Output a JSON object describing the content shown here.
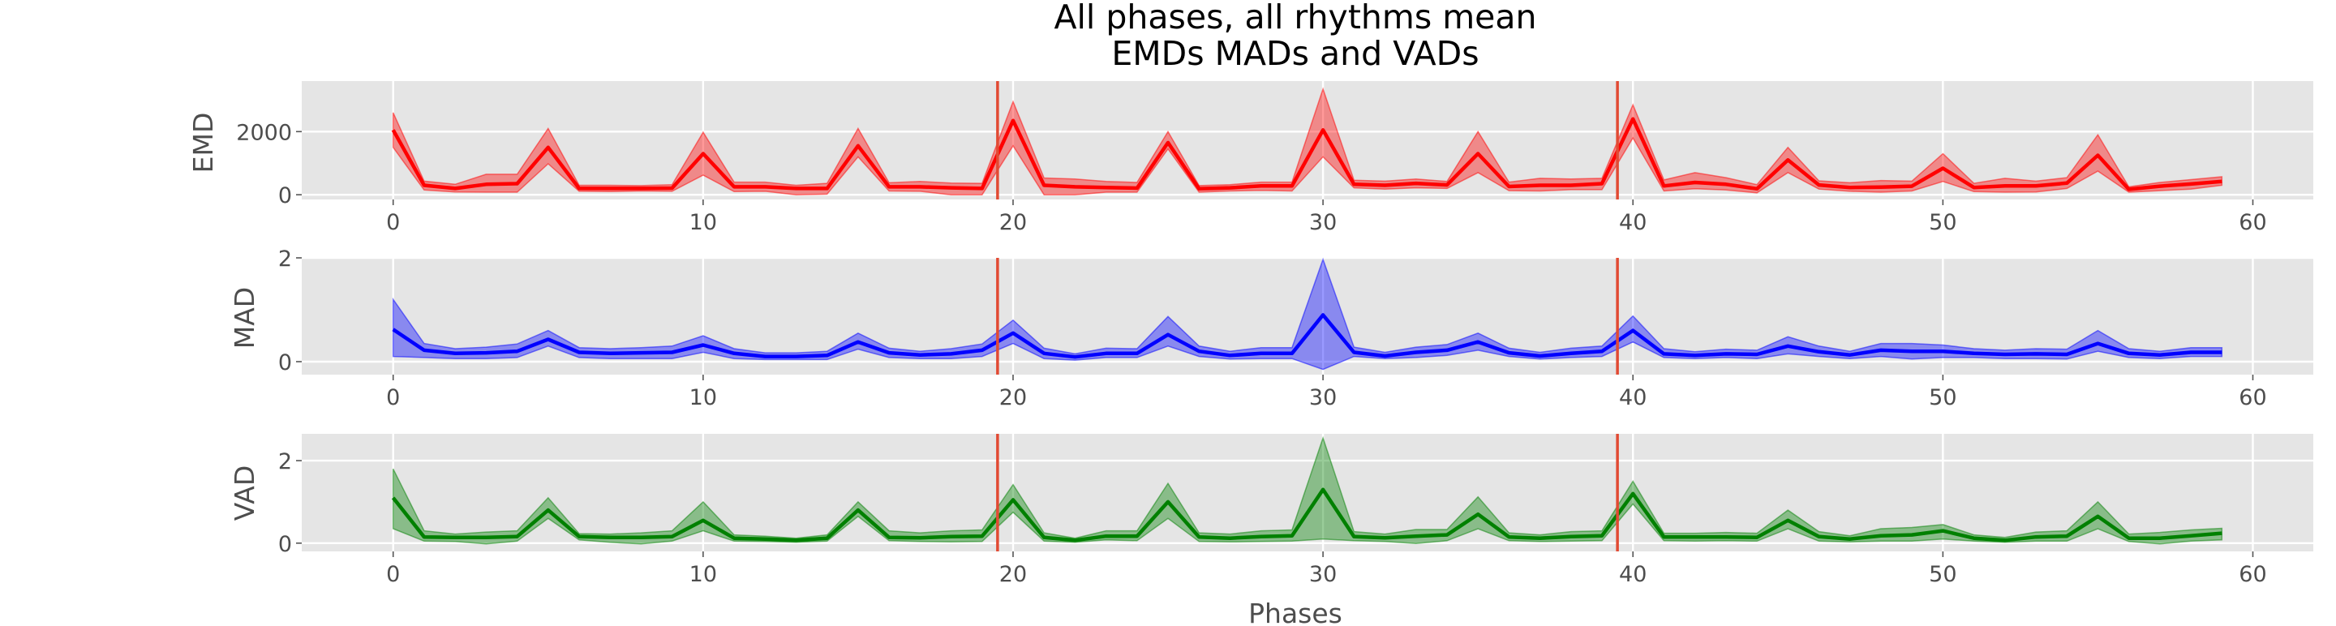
{
  "chart_data": {
    "title_lines": [
      "All phases, all rhythms mean",
      "EMDs MADs and VADs"
    ],
    "xlabel": "Phases",
    "xlim": [
      -2.95,
      61.95
    ],
    "xticks": [
      0,
      10,
      20,
      30,
      40,
      50,
      60
    ],
    "vlines": [
      19.5,
      39.5
    ],
    "vline_color": "#e24a33",
    "grid": true,
    "background": "#e5e5e5",
    "charts": [
      {
        "type": "line",
        "ylabel": "EMD",
        "color": "#ff0000",
        "ylim": [
          -150,
          3600
        ],
        "yticks": [
          0,
          2000
        ],
        "x": [
          0,
          1,
          2,
          3,
          4,
          5,
          6,
          7,
          8,
          9,
          10,
          11,
          12,
          13,
          14,
          15,
          16,
          17,
          18,
          19,
          20,
          21,
          22,
          23,
          24,
          25,
          26,
          27,
          28,
          29,
          30,
          31,
          32,
          33,
          34,
          35,
          36,
          37,
          38,
          39,
          40,
          41,
          42,
          43,
          44,
          45,
          46,
          47,
          48,
          49,
          50,
          51,
          52,
          53,
          54,
          55,
          56,
          57,
          58,
          59
        ],
        "series": [
          {
            "values": [
              2050,
              300,
              200,
              330,
              350,
              1500,
              200,
              200,
              200,
              210,
              1300,
              250,
              250,
              200,
              200,
              1550,
              250,
              250,
              220,
              200,
              2350,
              300,
              250,
              230,
              210,
              1650,
              190,
              220,
              280,
              280,
              2050,
              330,
              300,
              360,
              310,
              1300,
              260,
              300,
              300,
              350,
              2400,
              280,
              390,
              330,
              190,
              1100,
              310,
              230,
              240,
              270,
              840,
              230,
              280,
              280,
              370,
              1250,
              170,
              270,
              340,
              420
            ],
            "low": [
              1500,
              150,
              90,
              80,
              80,
              980,
              110,
              100,
              120,
              110,
              620,
              100,
              110,
              0,
              20,
              1200,
              120,
              110,
              0,
              0,
              1550,
              0,
              0,
              80,
              80,
              1450,
              80,
              120,
              140,
              120,
              1200,
              220,
              180,
              220,
              200,
              700,
              130,
              120,
              160,
              160,
              1800,
              120,
              190,
              150,
              60,
              700,
              180,
              110,
              80,
              120,
              420,
              100,
              80,
              90,
              200,
              750,
              80,
              130,
              180,
              300
            ],
            "high": [
              2600,
              430,
              330,
              650,
              650,
              2100,
              300,
              300,
              290,
              320,
              1980,
              400,
              400,
              300,
              360,
              2100,
              380,
              420,
              370,
              360,
              2950,
              530,
              500,
              420,
              390,
              2000,
              290,
              320,
              400,
              400,
              3350,
              460,
              430,
              500,
              420,
              2000,
              400,
              520,
              500,
              520,
              2850,
              470,
              700,
              540,
              320,
              1500,
              440,
              380,
              450,
              430,
              1300,
              360,
              520,
              430,
              540,
              1900,
              250,
              390,
              480,
              570
            ]
          }
        ]
      },
      {
        "type": "line",
        "ylabel": "MAD",
        "color": "#0000ff",
        "ylim": [
          -0.25,
          2.0
        ],
        "yticks": [
          0,
          2
        ],
        "x": [
          0,
          1,
          2,
          3,
          4,
          5,
          6,
          7,
          8,
          9,
          10,
          11,
          12,
          13,
          14,
          15,
          16,
          17,
          18,
          19,
          20,
          21,
          22,
          23,
          24,
          25,
          26,
          27,
          28,
          29,
          30,
          31,
          32,
          33,
          34,
          35,
          36,
          37,
          38,
          39,
          40,
          41,
          42,
          43,
          44,
          45,
          46,
          47,
          48,
          49,
          50,
          51,
          52,
          53,
          54,
          55,
          56,
          57,
          58,
          59
        ],
        "series": [
          {
            "values": [
              0.62,
              0.22,
              0.16,
              0.17,
              0.2,
              0.43,
              0.18,
              0.16,
              0.17,
              0.18,
              0.32,
              0.16,
              0.1,
              0.1,
              0.12,
              0.38,
              0.17,
              0.13,
              0.15,
              0.22,
              0.55,
              0.16,
              0.09,
              0.16,
              0.16,
              0.52,
              0.2,
              0.12,
              0.16,
              0.16,
              0.9,
              0.18,
              0.11,
              0.18,
              0.22,
              0.38,
              0.17,
              0.11,
              0.16,
              0.2,
              0.6,
              0.15,
              0.12,
              0.15,
              0.14,
              0.3,
              0.19,
              0.13,
              0.22,
              0.2,
              0.2,
              0.16,
              0.14,
              0.15,
              0.14,
              0.35,
              0.16,
              0.13,
              0.18,
              0.18
            ],
            "low": [
              0.1,
              0.08,
              0.06,
              0.06,
              0.08,
              0.3,
              0.08,
              0.06,
              0.06,
              0.06,
              0.18,
              0.06,
              0.04,
              0.04,
              0.04,
              0.24,
              0.08,
              0.06,
              0.06,
              0.1,
              0.35,
              0.06,
              0.03,
              0.08,
              0.08,
              0.3,
              0.1,
              0.05,
              0.06,
              0.06,
              -0.15,
              0.1,
              0.06,
              0.08,
              0.12,
              0.22,
              0.1,
              0.05,
              0.08,
              0.1,
              0.38,
              0.08,
              0.06,
              0.08,
              0.06,
              0.15,
              0.1,
              0.06,
              0.1,
              0.05,
              0.08,
              0.08,
              0.06,
              0.06,
              0.05,
              0.2,
              0.08,
              0.06,
              0.1,
              0.1
            ],
            "high": [
              1.2,
              0.35,
              0.25,
              0.28,
              0.34,
              0.6,
              0.27,
              0.25,
              0.27,
              0.3,
              0.5,
              0.25,
              0.17,
              0.17,
              0.2,
              0.55,
              0.26,
              0.2,
              0.25,
              0.34,
              0.8,
              0.26,
              0.15,
              0.26,
              0.25,
              0.87,
              0.3,
              0.2,
              0.27,
              0.27,
              1.97,
              0.28,
              0.18,
              0.28,
              0.33,
              0.55,
              0.26,
              0.18,
              0.26,
              0.3,
              0.88,
              0.25,
              0.19,
              0.24,
              0.22,
              0.48,
              0.3,
              0.2,
              0.35,
              0.35,
              0.32,
              0.25,
              0.22,
              0.25,
              0.24,
              0.6,
              0.25,
              0.2,
              0.27,
              0.27
            ]
          }
        ]
      },
      {
        "type": "line",
        "ylabel": "VAD",
        "color": "#008000",
        "ylim": [
          -0.2,
          2.65
        ],
        "yticks": [
          0,
          2
        ],
        "x": [
          0,
          1,
          2,
          3,
          4,
          5,
          6,
          7,
          8,
          9,
          10,
          11,
          12,
          13,
          14,
          15,
          16,
          17,
          18,
          19,
          20,
          21,
          22,
          23,
          24,
          25,
          26,
          27,
          28,
          29,
          30,
          31,
          32,
          33,
          34,
          35,
          36,
          37,
          38,
          39,
          40,
          41,
          42,
          43,
          44,
          45,
          46,
          47,
          48,
          49,
          50,
          51,
          52,
          53,
          54,
          55,
          56,
          57,
          58,
          59
        ],
        "series": [
          {
            "values": [
              1.1,
              0.15,
              0.14,
              0.14,
              0.16,
              0.8,
              0.16,
              0.14,
              0.14,
              0.16,
              0.55,
              0.12,
              0.1,
              0.07,
              0.12,
              0.8,
              0.14,
              0.13,
              0.16,
              0.17,
              1.05,
              0.14,
              0.07,
              0.17,
              0.17,
              1.0,
              0.15,
              0.12,
              0.16,
              0.18,
              1.3,
              0.16,
              0.13,
              0.17,
              0.2,
              0.7,
              0.15,
              0.12,
              0.16,
              0.18,
              1.2,
              0.15,
              0.15,
              0.15,
              0.14,
              0.55,
              0.16,
              0.1,
              0.18,
              0.2,
              0.3,
              0.12,
              0.07,
              0.15,
              0.17,
              0.65,
              0.12,
              0.12,
              0.18,
              0.24
            ],
            "low": [
              0.35,
              0.05,
              0.04,
              -0.02,
              0.05,
              0.6,
              0.08,
              0.02,
              -0.02,
              0.05,
              0.3,
              0.05,
              0.04,
              0.02,
              0.05,
              0.65,
              0.06,
              0.04,
              0.03,
              0.04,
              0.75,
              0.05,
              0.02,
              0.08,
              0.06,
              0.6,
              0.04,
              0.03,
              0.04,
              0.05,
              0.1,
              0.06,
              0.04,
              -0.01,
              0.06,
              0.35,
              0.06,
              0.04,
              0.05,
              0.06,
              0.95,
              0.06,
              0.05,
              0.06,
              0.05,
              0.35,
              0.05,
              0.03,
              0.05,
              0.05,
              0.1,
              0.05,
              0.02,
              0.05,
              0.05,
              0.35,
              0.04,
              -0.02,
              0.05,
              0.08
            ],
            "high": [
              1.8,
              0.3,
              0.22,
              0.27,
              0.3,
              1.1,
              0.23,
              0.22,
              0.25,
              0.3,
              1.0,
              0.2,
              0.17,
              0.12,
              0.2,
              1.0,
              0.3,
              0.25,
              0.3,
              0.32,
              1.42,
              0.25,
              0.12,
              0.3,
              0.3,
              1.45,
              0.25,
              0.22,
              0.3,
              0.32,
              2.55,
              0.28,
              0.22,
              0.33,
              0.33,
              1.12,
              0.25,
              0.2,
              0.28,
              0.3,
              1.5,
              0.24,
              0.24,
              0.26,
              0.24,
              0.8,
              0.28,
              0.18,
              0.35,
              0.38,
              0.45,
              0.2,
              0.14,
              0.27,
              0.3,
              1.0,
              0.22,
              0.26,
              0.32,
              0.36
            ]
          }
        ]
      }
    ]
  }
}
